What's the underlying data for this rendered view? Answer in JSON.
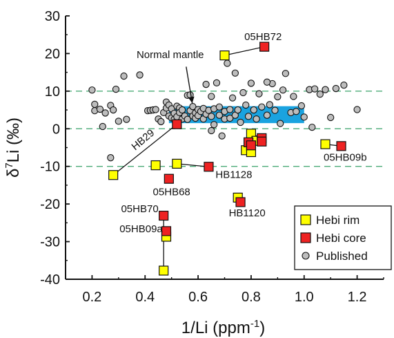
{
  "chart_data": {
    "type": "scatter",
    "xlabel": "1/Li (ppm",
    "xlabel_sup": "-1",
    "xlabel_tail": ")",
    "ylabel_prefix": "δ",
    "ylabel_sup": "7",
    "ylabel_main": "Li (‰)",
    "xlim": [
      0.1,
      1.3
    ],
    "ylim": [
      -40,
      30
    ],
    "xticks": [
      "0.2",
      "0.4",
      "0.6",
      "0.8",
      "1.0",
      "1.2"
    ],
    "xtick_values": [
      0.2,
      0.4,
      0.6,
      0.8,
      1.0,
      1.2
    ],
    "yticks": [
      "-40",
      "-30",
      "-20",
      "-10",
      "0",
      "10",
      "20",
      "30"
    ],
    "ytick_values": [
      -40,
      -30,
      -20,
      -10,
      0,
      10,
      20,
      30
    ],
    "reference_lines": [
      10,
      0,
      -10
    ],
    "normal_mantle_band": {
      "x": [
        0.49,
        1.0
      ],
      "y": [
        1.5,
        6
      ],
      "color": "#1aa3e0"
    },
    "colors": {
      "rim": "#ffff00",
      "core": "#ee2222",
      "published": "#bdbdbd",
      "dashed": "#3aa36a"
    },
    "series": [
      {
        "name": "Hebi rim",
        "marker": "square",
        "points": [
          [
            0.28,
            -12.3
          ],
          [
            0.44,
            -9.7
          ],
          [
            0.52,
            -9.3
          ],
          [
            0.47,
            -37.7
          ],
          [
            0.48,
            -28.7
          ],
          [
            0.7,
            19.5
          ],
          [
            0.78,
            -5.7
          ],
          [
            0.8,
            -6.2
          ],
          [
            0.8,
            -1.3
          ],
          [
            0.82,
            -3.2
          ],
          [
            0.75,
            -18.3
          ],
          [
            1.08,
            -4.1
          ]
        ]
      },
      {
        "name": "Hebi core",
        "marker": "square",
        "points": [
          [
            0.52,
            1.2
          ],
          [
            0.64,
            -10.1
          ],
          [
            0.49,
            -13.3
          ],
          [
            0.47,
            -23.1
          ],
          [
            0.48,
            -27.2
          ],
          [
            0.85,
            21.8
          ],
          [
            0.79,
            -3.6
          ],
          [
            0.8,
            -4.4
          ],
          [
            0.84,
            -2.5
          ],
          [
            0.84,
            -3.4
          ],
          [
            0.76,
            -19.5
          ],
          [
            1.14,
            -4.6
          ]
        ]
      },
      {
        "name": "Published",
        "marker": "circle",
        "points": [
          [
            0.2,
            10.3
          ],
          [
            0.21,
            6.5
          ],
          [
            0.21,
            4.8
          ],
          [
            0.23,
            5.2
          ],
          [
            0.25,
            4.2
          ],
          [
            0.24,
            0.6
          ],
          [
            0.27,
            6.2
          ],
          [
            0.28,
            5.0
          ],
          [
            0.29,
            10.5
          ],
          [
            0.3,
            2.0
          ],
          [
            0.32,
            14.0
          ],
          [
            0.33,
            2.5
          ],
          [
            0.27,
            -7.7
          ],
          [
            0.38,
            14.3
          ],
          [
            0.41,
            4.8
          ],
          [
            0.42,
            4.9
          ],
          [
            0.43,
            5.0
          ],
          [
            0.44,
            5.1
          ],
          [
            0.45,
            2.6
          ],
          [
            0.46,
            1.9
          ],
          [
            0.47,
            4.3
          ],
          [
            0.48,
            7.1
          ],
          [
            0.48,
            5.5
          ],
          [
            0.49,
            6.3
          ],
          [
            0.49,
            3.4
          ],
          [
            0.5,
            5.3
          ],
          [
            0.5,
            2.9
          ],
          [
            0.51,
            2.5
          ],
          [
            0.51,
            4.1
          ],
          [
            0.52,
            6.0
          ],
          [
            0.52,
            3.2
          ],
          [
            0.53,
            5.5
          ],
          [
            0.53,
            4.3
          ],
          [
            0.54,
            2.6
          ],
          [
            0.54,
            5.0
          ],
          [
            0.55,
            3.4
          ],
          [
            0.56,
            8.9
          ],
          [
            0.56,
            2.5
          ],
          [
            0.57,
            4.8
          ],
          [
            0.58,
            3.4
          ],
          [
            0.58,
            5.9
          ],
          [
            0.59,
            2.8
          ],
          [
            0.59,
            4.2
          ],
          [
            0.6,
            5.1
          ],
          [
            0.6,
            3.5
          ],
          [
            0.61,
            4.6
          ],
          [
            0.62,
            2.6
          ],
          [
            0.62,
            5.4
          ],
          [
            0.63,
            11.8
          ],
          [
            0.63,
            3.9
          ],
          [
            0.64,
            4.9
          ],
          [
            0.65,
            8.6
          ],
          [
            0.65,
            3.3
          ],
          [
            0.66,
            5.3
          ],
          [
            0.66,
            1.1
          ],
          [
            0.67,
            12.2
          ],
          [
            0.68,
            3.6
          ],
          [
            0.68,
            5.8
          ],
          [
            0.69,
            -1.9
          ],
          [
            0.7,
            4.6
          ],
          [
            0.7,
            2.6
          ],
          [
            0.71,
            17.4
          ],
          [
            0.72,
            5.1
          ],
          [
            0.72,
            2.8
          ],
          [
            0.73,
            8.2
          ],
          [
            0.74,
            14.8
          ],
          [
            0.74,
            3.6
          ],
          [
            0.75,
            5.0
          ],
          [
            0.76,
            1.7
          ],
          [
            0.77,
            9.6
          ],
          [
            0.78,
            6.3
          ],
          [
            0.79,
            3.3
          ],
          [
            0.8,
            12.1
          ],
          [
            0.81,
            5.0
          ],
          [
            0.82,
            2.6
          ],
          [
            0.83,
            9.3
          ],
          [
            0.84,
            5.8
          ],
          [
            0.86,
            3.6
          ],
          [
            0.87,
            6.4
          ],
          [
            0.88,
            12.0
          ],
          [
            0.89,
            4.9
          ],
          [
            0.9,
            8.5
          ],
          [
            0.91,
            1.4
          ],
          [
            0.92,
            10.3
          ],
          [
            0.93,
            14.7
          ],
          [
            0.95,
            4.3
          ],
          [
            0.96,
            8.6
          ],
          [
            0.97,
            4.6
          ],
          [
            0.99,
            6.1
          ],
          [
            1.0,
            3.1
          ],
          [
            1.02,
            10.4
          ],
          [
            1.03,
            0.4
          ],
          [
            1.04,
            10.6
          ],
          [
            1.06,
            9.2
          ],
          [
            1.08,
            10.4
          ],
          [
            1.1,
            3.0
          ],
          [
            1.12,
            10.7
          ],
          [
            1.15,
            11.6
          ],
          [
            1.2,
            5.1
          ],
          [
            0.86,
            12.4
          ],
          [
            0.57,
            9.0
          ],
          [
            0.65,
            -0.5
          ]
        ]
      }
    ],
    "pairs": [
      [
        [
          0.28,
          -12.3
        ],
        [
          0.52,
          1.2
        ]
      ],
      [
        [
          0.52,
          -9.3
        ],
        [
          0.64,
          -10.1
        ]
      ],
      [
        [
          0.7,
          19.5
        ],
        [
          0.85,
          21.8
        ]
      ],
      [
        [
          0.78,
          -5.7
        ],
        [
          0.79,
          -3.6
        ]
      ],
      [
        [
          0.8,
          -6.2
        ],
        [
          0.8,
          -4.4
        ]
      ],
      [
        [
          0.8,
          -1.3
        ],
        [
          0.84,
          -2.5
        ]
      ],
      [
        [
          0.82,
          -3.2
        ],
        [
          0.84,
          -3.4
        ]
      ],
      [
        [
          0.75,
          -18.3
        ],
        [
          0.76,
          -19.5
        ]
      ],
      [
        [
          1.08,
          -4.1
        ],
        [
          1.14,
          -4.6
        ]
      ],
      [
        [
          0.47,
          -37.7
        ],
        [
          0.47,
          -23.1
        ]
      ],
      [
        [
          0.48,
          -28.7
        ],
        [
          0.48,
          -27.2
        ]
      ]
    ],
    "annotations": [
      {
        "text": "05HB72",
        "x": 0.845,
        "y": 23.6
      },
      {
        "text": "Normal mantle",
        "x": 0.495,
        "y": 18.8
      },
      {
        "text": "HB29",
        "x": 0.4,
        "y": -3.6,
        "rotate": -40
      },
      {
        "text": "05HB09b",
        "x": 1.155,
        "y": -8.5
      },
      {
        "text": "HB1128",
        "x": 0.735,
        "y": -13.1
      },
      {
        "text": "05HB68",
        "x": 0.5,
        "y": -17.7
      },
      {
        "text": "HB1120",
        "x": 0.785,
        "y": -23.3
      },
      {
        "text": "05HB70",
        "x": 0.38,
        "y": -22.2
      },
      {
        "text": "05HB09a",
        "x": 0.385,
        "y": -27.5
      }
    ],
    "legend": {
      "position": "bottom-right",
      "entries": [
        {
          "label": "Hebi rim",
          "marker": "square",
          "color": "#ffff00"
        },
        {
          "label": "Hebi core",
          "marker": "square",
          "color": "#ee2222"
        },
        {
          "label": "Published",
          "marker": "circle",
          "color": "#bdbdbd"
        }
      ]
    }
  }
}
